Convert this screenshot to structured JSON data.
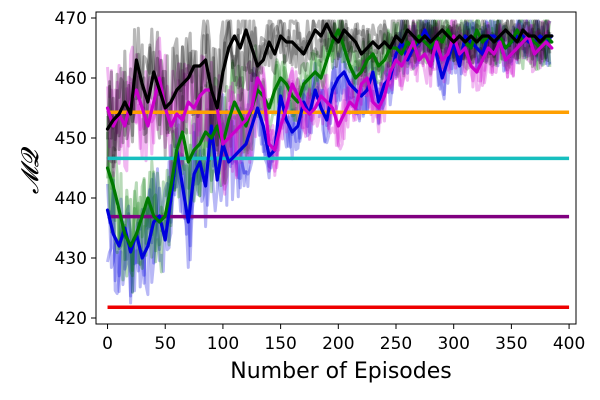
{
  "chart_data": {
    "type": "line",
    "xlabel": "Number of Episodes",
    "ylabel": "𝓜𝓠",
    "xlim": [
      -10,
      406
    ],
    "ylim": [
      419,
      471
    ],
    "xticks": [
      0,
      50,
      100,
      150,
      200,
      250,
      300,
      350,
      400
    ],
    "yticks": [
      420,
      430,
      440,
      450,
      460,
      470
    ],
    "grid": false,
    "legend": "none",
    "baselines": [
      {
        "color": "#ff9f00",
        "y": 454.3
      },
      {
        "color": "#17bfbf",
        "y": 446.6
      },
      {
        "color": "#800080",
        "y": 436.9
      },
      {
        "color": "#ee0000",
        "y": 421.8
      }
    ],
    "series": [
      {
        "color": "#0000dd",
        "x": [
          0,
          5,
          10,
          15,
          20,
          25,
          30,
          35,
          40,
          45,
          50,
          55,
          60,
          65,
          70,
          75,
          80,
          85,
          90,
          95,
          100,
          105,
          110,
          115,
          120,
          125,
          130,
          135,
          140,
          145,
          150,
          155,
          160,
          165,
          170,
          175,
          180,
          185,
          190,
          195,
          200,
          205,
          210,
          215,
          220,
          225,
          230,
          235,
          240,
          245,
          250,
          255,
          260,
          265,
          270,
          275,
          280,
          285,
          290,
          295,
          300,
          305,
          310,
          315,
          320,
          325,
          330,
          335,
          340,
          345,
          350,
          355,
          360,
          365,
          370,
          375,
          380,
          385
        ],
        "values": [
          438,
          434,
          432,
          435,
          431,
          434,
          430,
          432,
          436,
          437,
          433,
          440,
          448,
          442,
          436,
          444,
          446,
          442,
          452,
          443,
          449,
          446,
          447,
          448,
          449,
          452,
          455,
          452,
          447,
          448,
          457,
          453,
          451,
          452,
          456,
          454,
          458,
          455,
          453,
          458,
          460,
          461,
          459,
          458,
          457,
          458,
          461,
          456,
          459,
          460,
          464,
          466,
          463,
          465,
          466,
          468,
          466,
          464,
          460,
          463,
          466,
          462,
          467,
          466,
          465,
          464,
          467,
          467,
          466,
          465,
          466,
          467,
          467,
          466,
          466,
          467,
          466,
          467
        ]
      },
      {
        "color": "#007a00",
        "x": [
          0,
          5,
          10,
          15,
          20,
          25,
          30,
          35,
          40,
          45,
          50,
          55,
          60,
          65,
          70,
          75,
          80,
          85,
          90,
          95,
          100,
          105,
          110,
          115,
          120,
          125,
          130,
          135,
          140,
          145,
          150,
          155,
          160,
          165,
          170,
          175,
          180,
          185,
          190,
          195,
          200,
          205,
          210,
          215,
          220,
          225,
          230,
          235,
          240,
          245,
          250,
          255,
          260,
          265,
          270,
          275,
          280,
          285,
          290,
          295,
          300,
          305,
          310,
          315,
          320,
          325,
          330,
          335,
          340,
          345,
          350,
          355,
          360,
          365,
          370,
          375,
          380,
          385
        ],
        "values": [
          445,
          442,
          438,
          434,
          432,
          434,
          437,
          440,
          437,
          436,
          437,
          442,
          448,
          451,
          446,
          448,
          449,
          451,
          450,
          452,
          449,
          453,
          456,
          454,
          452,
          455,
          458,
          457,
          455,
          458,
          460,
          459,
          457,
          456,
          459,
          460,
          461,
          460,
          463,
          466,
          468,
          465,
          462,
          460,
          461,
          463,
          464,
          462,
          463,
          465,
          465,
          464,
          466,
          465,
          467,
          466,
          465,
          467,
          466,
          468,
          466,
          467,
          466,
          465,
          468,
          466,
          467,
          466,
          467,
          465,
          466,
          468,
          466,
          467,
          466,
          465,
          467,
          466
        ]
      },
      {
        "color": "#cc00cc",
        "x": [
          0,
          5,
          10,
          15,
          20,
          25,
          30,
          35,
          40,
          45,
          50,
          55,
          60,
          65,
          70,
          75,
          80,
          85,
          90,
          95,
          100,
          105,
          110,
          115,
          120,
          125,
          130,
          135,
          140,
          145,
          150,
          155,
          160,
          165,
          170,
          175,
          180,
          185,
          190,
          195,
          200,
          205,
          210,
          215,
          220,
          225,
          230,
          235,
          240,
          245,
          250,
          255,
          260,
          265,
          270,
          275,
          280,
          285,
          290,
          295,
          300,
          305,
          310,
          315,
          320,
          325,
          330,
          335,
          340,
          345,
          350,
          355,
          360,
          365,
          370,
          375,
          380,
          385
        ],
        "values": [
          455,
          452,
          454,
          452,
          456,
          458,
          455,
          452,
          456,
          460,
          455,
          452,
          454,
          453,
          456,
          455,
          457,
          458,
          458,
          455,
          449,
          450,
          451,
          452,
          453,
          455,
          460,
          458,
          449,
          448,
          452,
          455,
          459,
          457,
          455,
          454,
          455,
          457,
          456,
          455,
          452,
          454,
          456,
          455,
          459,
          460,
          456,
          455,
          457,
          461,
          463,
          462,
          464,
          466,
          463,
          464,
          462,
          466,
          463,
          464,
          467,
          464,
          465,
          462,
          461,
          463,
          465,
          464,
          466,
          463,
          464,
          465,
          466,
          467,
          464,
          465,
          466,
          465
        ]
      },
      {
        "color": "#000000",
        "x": [
          0,
          5,
          10,
          15,
          20,
          25,
          30,
          35,
          40,
          45,
          50,
          55,
          60,
          65,
          70,
          75,
          80,
          85,
          90,
          95,
          100,
          105,
          110,
          115,
          120,
          125,
          130,
          135,
          140,
          145,
          150,
          155,
          160,
          165,
          170,
          175,
          180,
          185,
          190,
          195,
          200,
          205,
          210,
          215,
          220,
          225,
          230,
          235,
          240,
          245,
          250,
          255,
          260,
          265,
          270,
          275,
          280,
          285,
          290,
          295,
          300,
          305,
          310,
          315,
          320,
          325,
          330,
          335,
          340,
          345,
          350,
          355,
          360,
          365,
          370,
          375,
          380,
          385
        ],
        "values": [
          451.5,
          453,
          454,
          456,
          454,
          463,
          459,
          456,
          461,
          458,
          455,
          456,
          458,
          459,
          460,
          462,
          462,
          463,
          458,
          455,
          461,
          465,
          467,
          465,
          468,
          465,
          462,
          463,
          466,
          464,
          467,
          466,
          466,
          465,
          464,
          466,
          468,
          467,
          469,
          467,
          466,
          468,
          467,
          466,
          464,
          465,
          466,
          465,
          466,
          465,
          467,
          466,
          468,
          467,
          466,
          467,
          466,
          467,
          468,
          467,
          466,
          467,
          466,
          467,
          466,
          467,
          467,
          466,
          467,
          468,
          467,
          466,
          468,
          467,
          467,
          466,
          467,
          467
        ]
      }
    ]
  }
}
